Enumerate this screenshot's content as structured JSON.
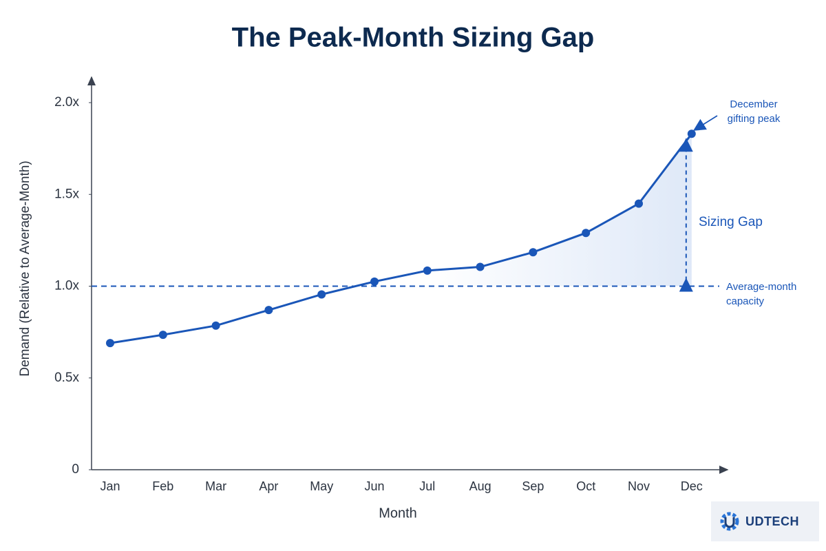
{
  "chart_data": {
    "type": "line",
    "title": "The Peak-Month Sizing Gap",
    "x_label": "Month",
    "y_label": "Demand (Relative to Average-Month)",
    "categories": [
      "Jan",
      "Feb",
      "Mar",
      "Apr",
      "May",
      "Jun",
      "Jul",
      "Aug",
      "Sep",
      "Oct",
      "Nov",
      "Dec"
    ],
    "values": [
      0.69,
      0.735,
      0.785,
      0.87,
      0.955,
      1.025,
      1.085,
      1.105,
      1.185,
      1.29,
      1.45,
      1.83
    ],
    "color": "#1a56b8",
    "ylim": [
      0,
      2.1
    ],
    "yticks": [
      0,
      {
        "value": 0.5,
        "label": "0.5x"
      },
      {
        "value": 1,
        "label": "1.0x"
      },
      {
        "value": 1.5,
        "label": "1.5x"
      },
      {
        "value": 2,
        "label": "2.0x"
      }
    ],
    "grid": false,
    "reference": {
      "value": 1,
      "label": "Average-month capacity"
    },
    "annotations": [
      {
        "text": "December gifting peak"
      },
      {
        "text": "Sizing Gap"
      }
    ],
    "watermark": "UDTECH"
  }
}
